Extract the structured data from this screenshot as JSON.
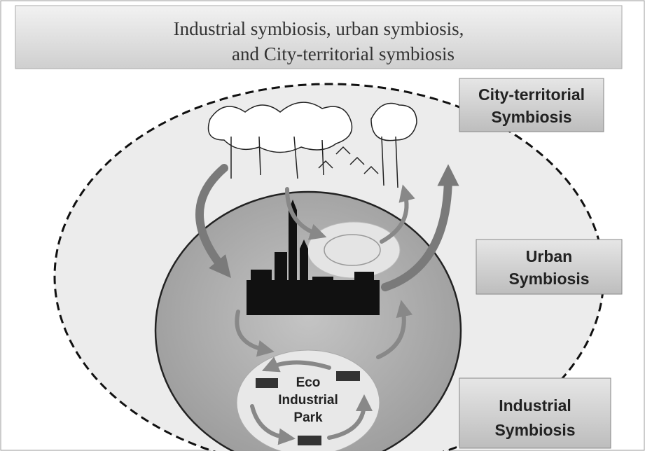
{
  "header": {
    "title_lines": [
      "Industrial symbiosis, urban symbiosis,",
      "and City-territorial symbiosis"
    ]
  },
  "labels": [
    {
      "lines": [
        "City-territorial",
        "Symbiosis"
      ]
    },
    {
      "lines": [
        "Urban",
        "Symbiosis"
      ]
    },
    {
      "lines": [
        "Industrial",
        "Symbiosis"
      ]
    }
  ],
  "park": {
    "lines": [
      "Eco",
      "Industrial",
      "Park"
    ]
  }
}
